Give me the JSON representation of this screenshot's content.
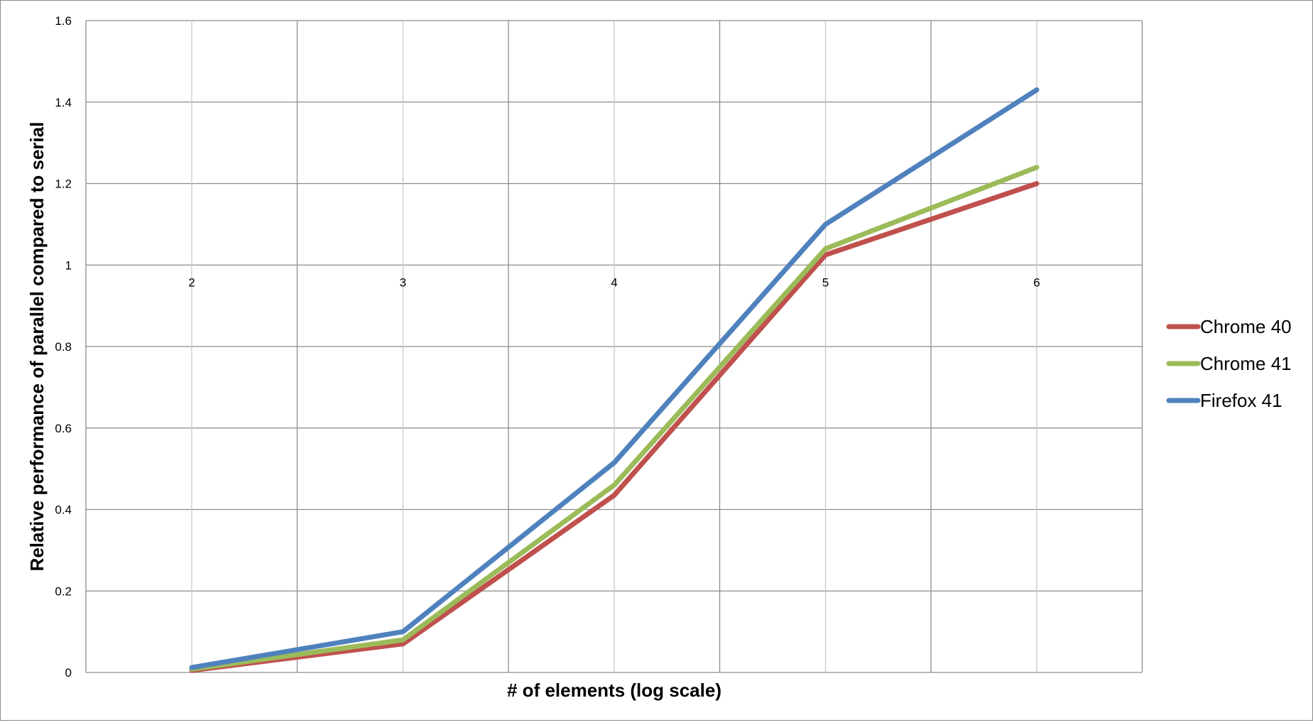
{
  "chart_data": {
    "type": "line",
    "xlabel": "# of elements (log scale)",
    "ylabel": "Relative performance of parallel compared to serial",
    "categories": [
      "2",
      "3",
      "4",
      "5",
      "6"
    ],
    "x_tick_labels": [
      "2",
      "3",
      "4",
      "5",
      "6"
    ],
    "y_tick_labels": [
      "0",
      "0.2",
      "0.4",
      "0.6",
      "0.8",
      "1",
      "1.2",
      "1.4",
      "1.6"
    ],
    "ylim": [
      0,
      1.6
    ],
    "y_major_step": 0.2,
    "grid": true,
    "legend_position": "right",
    "series": [
      {
        "name": "Chrome 40",
        "color": "#c0504d",
        "values": [
          0.005,
          0.07,
          0.435,
          1.025,
          1.2
        ]
      },
      {
        "name": "Chrome 41",
        "color": "#9bbb59",
        "values": [
          0.008,
          0.08,
          0.46,
          1.04,
          1.24
        ]
      },
      {
        "name": "Firefox 41",
        "color": "#4f81bd",
        "values": [
          0.012,
          0.1,
          0.515,
          1.1,
          1.43
        ]
      }
    ]
  }
}
